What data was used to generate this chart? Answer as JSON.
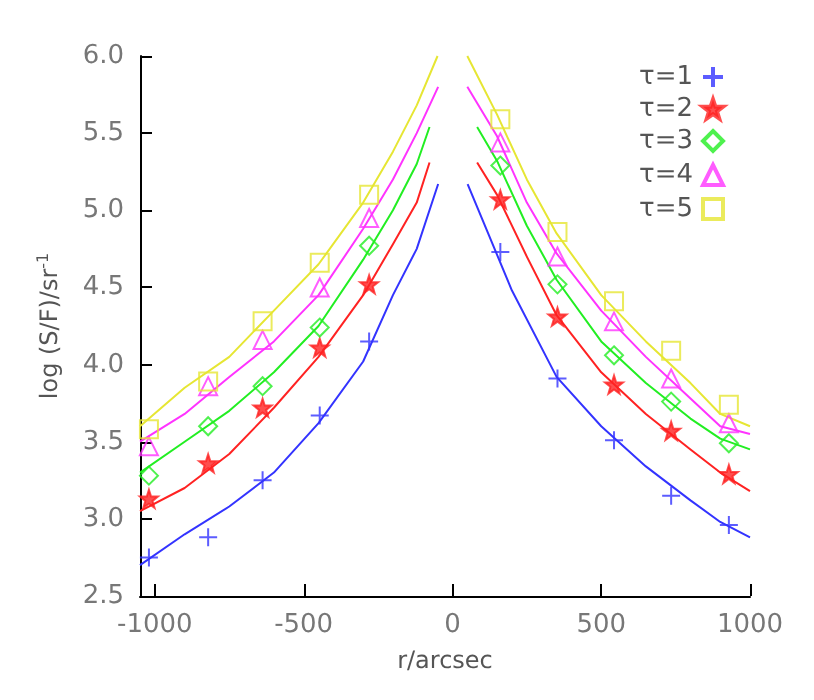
{
  "chart_data": {
    "type": "line",
    "xlabel": "r/arcsec",
    "ylabel": "log (S/F)/sr$^{-1}$",
    "xlim": [
      -1050,
      1000
    ],
    "xticks": [
      -1000,
      -500,
      0,
      500,
      1000
    ],
    "ylim": [
      2.5,
      6.0
    ],
    "yticks": [
      2.5,
      {
        "value": 3,
        "label": "3.0"
      },
      3.5,
      {
        "value": 4,
        "label": "4.0"
      },
      4.5,
      {
        "value": 5,
        "label": "5.0"
      },
      5.5,
      {
        "value": 6,
        "label": "6.0"
      }
    ],
    "legend": "top right",
    "series": [
      {
        "color": "#3333ff",
        "x": [
          -1050,
          -900,
          -750,
          -600,
          -450,
          -300,
          -200,
          -120,
          -48,
          0,
          51,
          120,
          200,
          350,
          500,
          650,
          800,
          900,
          1000
        ],
        "values": [
          2.7,
          2.9,
          3.08,
          3.3,
          3.62,
          4.02,
          4.45,
          4.75,
          5.17,
          null,
          5.17,
          4.85,
          4.48,
          3.92,
          3.6,
          3.34,
          3.12,
          2.98,
          2.88
        ]
      },
      {
        "color": "#ff2222",
        "x": [
          -1050,
          -900,
          -750,
          -600,
          -450,
          -300,
          -200,
          -120,
          -77,
          0,
          83,
          150,
          250,
          350,
          500,
          650,
          800,
          900,
          1000
        ],
        "values": [
          3.05,
          3.2,
          3.42,
          3.72,
          4.05,
          4.45,
          4.78,
          5.05,
          5.31,
          null,
          5.31,
          5.1,
          4.7,
          4.32,
          3.95,
          3.68,
          3.45,
          3.3,
          3.18
        ]
      },
      {
        "color": "#22ee22",
        "x": [
          -1050,
          -900,
          -750,
          -600,
          -450,
          -300,
          -200,
          -120,
          -77,
          0,
          83,
          150,
          250,
          350,
          500,
          650,
          800,
          900,
          1000
        ],
        "values": [
          3.3,
          3.5,
          3.7,
          3.95,
          4.25,
          4.68,
          5.0,
          5.3,
          5.54,
          null,
          5.54,
          5.32,
          4.9,
          4.55,
          4.15,
          3.88,
          3.65,
          3.52,
          3.45
        ]
      },
      {
        "color": "#ff33ff",
        "x": [
          -1050,
          -900,
          -750,
          -600,
          -450,
          -300,
          -200,
          -120,
          -48,
          0,
          50,
          150,
          250,
          350,
          500,
          650,
          800,
          900,
          1000
        ],
        "values": [
          3.5,
          3.68,
          3.92,
          4.15,
          4.45,
          4.88,
          5.2,
          5.5,
          5.8,
          null,
          5.8,
          5.48,
          5.05,
          4.72,
          4.35,
          4.05,
          3.78,
          3.6,
          3.55
        ]
      },
      {
        "color": "#e6e633",
        "x": [
          -1050,
          -900,
          -750,
          -600,
          -450,
          -300,
          -200,
          -120,
          -50,
          0,
          50,
          150,
          250,
          350,
          500,
          650,
          800,
          900,
          1000
        ],
        "values": [
          3.6,
          3.85,
          4.05,
          4.35,
          4.65,
          5.05,
          5.38,
          5.68,
          6.0,
          null,
          6.0,
          5.62,
          5.2,
          4.85,
          4.45,
          4.15,
          3.88,
          3.68,
          3.6
        ]
      },
      {
        "type": "scatter",
        "name": "τ=1",
        "color": "#3333ff",
        "marker": "cross",
        "x": [
          -1020,
          -821,
          -638,
          -446,
          -280,
          161,
          353,
          543,
          735,
          929
        ],
        "values": [
          2.75,
          2.88,
          3.25,
          3.67,
          4.15,
          4.73,
          3.91,
          3.51,
          3.15,
          2.96
        ]
      },
      {
        "type": "scatter",
        "name": "τ=2",
        "color": "#ff2222",
        "marker": "star",
        "x": [
          -1020,
          -821,
          -638,
          -446,
          -280,
          161,
          353,
          543,
          735,
          929
        ],
        "values": [
          3.13,
          3.36,
          3.72,
          4.11,
          4.52,
          5.07,
          4.31,
          3.87,
          3.57,
          3.29
        ]
      },
      {
        "type": "scatter",
        "name": "τ=3",
        "color": "#22ee22",
        "marker": "diamond",
        "x": [
          -1020,
          -821,
          -638,
          -446,
          -280,
          161,
          353,
          543,
          735,
          929
        ],
        "values": [
          3.28,
          3.6,
          3.86,
          4.24,
          4.77,
          5.29,
          4.52,
          4.06,
          3.76,
          3.49
        ]
      },
      {
        "type": "scatter",
        "name": "τ=4",
        "color": "#ff33ff",
        "marker": "triangle",
        "x": [
          -1020,
          -821,
          -638,
          -446,
          -280,
          161,
          353,
          543,
          735,
          929
        ],
        "values": [
          3.47,
          3.86,
          4.16,
          4.5,
          4.95,
          5.44,
          4.7,
          4.28,
          3.91,
          3.62
        ]
      },
      {
        "type": "scatter",
        "name": "τ=5",
        "color": "#e6e633",
        "marker": "square",
        "x": [
          -1020,
          -821,
          -638,
          -446,
          -280,
          161,
          353,
          543,
          735,
          929
        ],
        "values": [
          3.58,
          3.89,
          4.28,
          4.66,
          5.1,
          5.59,
          4.86,
          4.41,
          4.09,
          3.74
        ]
      }
    ]
  }
}
